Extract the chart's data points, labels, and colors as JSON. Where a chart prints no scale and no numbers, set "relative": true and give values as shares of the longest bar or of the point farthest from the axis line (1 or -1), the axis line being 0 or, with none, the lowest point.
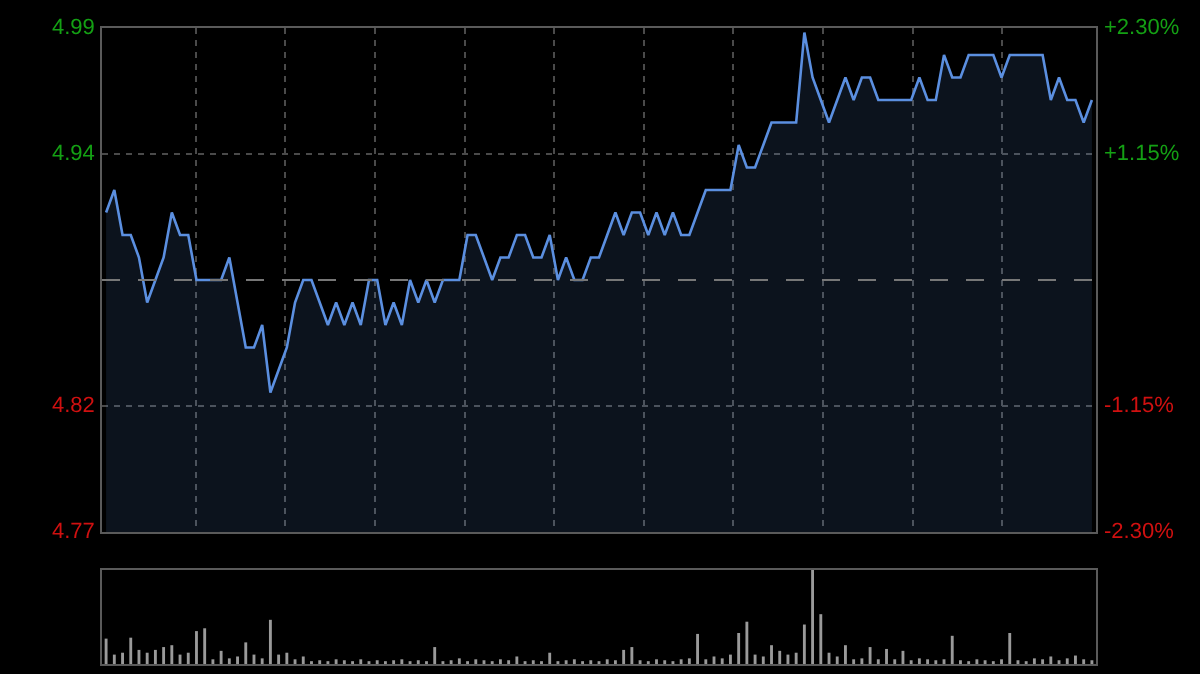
{
  "chart_data": [
    {
      "type": "area",
      "categories": [
        null,
        null,
        null,
        null,
        null,
        null,
        null,
        null,
        null,
        null,
        null,
        null,
        null,
        null,
        null,
        null,
        null,
        null,
        null,
        null,
        null,
        null,
        null,
        null,
        null,
        null,
        null,
        null,
        null,
        null,
        null,
        null,
        null,
        null,
        null,
        null,
        null,
        null,
        null,
        null,
        null,
        null,
        null,
        null,
        null,
        null,
        null,
        null,
        null,
        null,
        null,
        null,
        null,
        null,
        null,
        null,
        null,
        null,
        null,
        null,
        null,
        null,
        null,
        null,
        null,
        null,
        null,
        null,
        null,
        null,
        null,
        null,
        null,
        null,
        null,
        null,
        null,
        null,
        null,
        null,
        null,
        null,
        null,
        null,
        null,
        null,
        null,
        null,
        null,
        null,
        null,
        null,
        null,
        null,
        null,
        null,
        null,
        null,
        null,
        null,
        null,
        null,
        null,
        null,
        null,
        null,
        null,
        null,
        null,
        null,
        null,
        null,
        null,
        null,
        null,
        null,
        null,
        null,
        null,
        null,
        null
      ],
      "series": [
        {
          "color": "#5b8fe0",
          "values": [
            4.91,
            4.92,
            4.9,
            4.9,
            4.89,
            4.87,
            4.88,
            4.89,
            4.91,
            4.9,
            4.9,
            4.88,
            4.88,
            4.88,
            4.88,
            4.89,
            4.87,
            4.85,
            4.85,
            4.86,
            4.83,
            4.84,
            4.85,
            4.87,
            4.88,
            4.88,
            4.87,
            4.86,
            4.87,
            4.86,
            4.87,
            4.86,
            4.88,
            4.88,
            4.86,
            4.87,
            4.86,
            4.88,
            4.87,
            4.88,
            4.87,
            4.88,
            4.88,
            4.88,
            4.9,
            4.9,
            4.89,
            4.88,
            4.89,
            4.89,
            4.9,
            4.9,
            4.89,
            4.89,
            4.9,
            4.88,
            4.89,
            4.88,
            4.88,
            4.89,
            4.89,
            4.9,
            4.91,
            4.9,
            4.91,
            4.91,
            4.9,
            4.91,
            4.9,
            4.91,
            4.9,
            4.9,
            4.91,
            4.92,
            4.92,
            4.92,
            4.92,
            4.94,
            4.93,
            4.93,
            4.94,
            4.95,
            4.95,
            4.95,
            4.95,
            4.99,
            4.97,
            4.96,
            4.95,
            4.96,
            4.97,
            4.96,
            4.97,
            4.97,
            4.96,
            4.96,
            4.96,
            4.96,
            4.96,
            4.97,
            4.96,
            4.96,
            4.98,
            4.97,
            4.97,
            4.98,
            4.98,
            4.98,
            4.98,
            4.97,
            4.98,
            4.98,
            4.98,
            4.98,
            4.98,
            4.96,
            4.97,
            4.96,
            4.96,
            4.95,
            4.96
          ]
        }
      ],
      "ylim": [
        4.768,
        4.992
      ],
      "yticks": [
        {
          "value": 4.992,
          "label": "4.99"
        },
        {
          "value": 4.936,
          "label": "4.94"
        },
        {
          "value": 4.824,
          "label": "4.82"
        },
        {
          "value": 4.768,
          "label": "4.77"
        }
      ],
      "y2lim": [
        -2.3,
        2.3
      ],
      "y2ticks": [
        {
          "value": 2.3,
          "label": "+2.30%"
        },
        {
          "value": 1.15,
          "label": "+1.15%"
        },
        {
          "value": -1.15,
          "label": "-1.15%"
        },
        {
          "value": -2.3,
          "label": "-2.30%"
        }
      ],
      "ref_lines": [
        {
          "axis": "y",
          "value": 4.88,
          "label": null,
          "line_style": "dashed"
        }
      ],
      "grid": true,
      "tick_labels": "y"
    },
    {
      "type": "bar",
      "relative": true,
      "color": "#9a9a9a",
      "tick_labels": false,
      "categories": [
        null,
        null,
        null,
        null,
        null,
        null,
        null,
        null,
        null,
        null,
        null,
        null,
        null,
        null,
        null,
        null,
        null,
        null,
        null,
        null,
        null,
        null,
        null,
        null,
        null,
        null,
        null,
        null,
        null,
        null,
        null,
        null,
        null,
        null,
        null,
        null,
        null,
        null,
        null,
        null,
        null,
        null,
        null,
        null,
        null,
        null,
        null,
        null,
        null,
        null,
        null,
        null,
        null,
        null,
        null,
        null,
        null,
        null,
        null,
        null,
        null,
        null,
        null,
        null,
        null,
        null,
        null,
        null,
        null,
        null,
        null,
        null,
        null,
        null,
        null,
        null,
        null,
        null,
        null,
        null,
        null,
        null,
        null,
        null,
        null,
        null,
        null,
        null,
        null,
        null,
        null,
        null,
        null,
        null,
        null,
        null,
        null,
        null,
        null,
        null,
        null,
        null,
        null,
        null,
        null,
        null,
        null,
        null,
        null,
        null,
        null,
        null,
        null,
        null,
        null,
        null,
        null,
        null,
        null,
        null,
        null
      ],
      "values": [
        0.27,
        0.1,
        0.12,
        0.28,
        0.15,
        0.12,
        0.15,
        0.18,
        0.2,
        0.1,
        0.12,
        0.35,
        0.38,
        0.05,
        0.14,
        0.06,
        0.08,
        0.23,
        0.1,
        0.06,
        0.47,
        0.1,
        0.12,
        0.05,
        0.08,
        0.03,
        0.04,
        0.03,
        0.05,
        0.04,
        0.03,
        0.05,
        0.03,
        0.04,
        0.03,
        0.04,
        0.05,
        0.03,
        0.04,
        0.03,
        0.18,
        0.03,
        0.04,
        0.06,
        0.03,
        0.05,
        0.04,
        0.03,
        0.05,
        0.04,
        0.08,
        0.03,
        0.04,
        0.03,
        0.12,
        0.03,
        0.04,
        0.05,
        0.03,
        0.04,
        0.03,
        0.05,
        0.04,
        0.15,
        0.18,
        0.04,
        0.03,
        0.05,
        0.04,
        0.03,
        0.05,
        0.06,
        0.32,
        0.05,
        0.08,
        0.06,
        0.1,
        0.33,
        0.45,
        0.1,
        0.08,
        0.2,
        0.14,
        0.1,
        0.12,
        0.42,
        1,
        0.53,
        0.12,
        0.08,
        0.2,
        0.05,
        0.06,
        0.18,
        0.05,
        0.16,
        0.05,
        0.14,
        0.04,
        0.06,
        0.05,
        0.04,
        0.05,
        0.3,
        0.04,
        0.03,
        0.05,
        0.04,
        0.03,
        0.05,
        0.33,
        0.04,
        0.03,
        0.06,
        0.05,
        0.08,
        0.04,
        0.06,
        0.09,
        0.05,
        0.04
      ]
    }
  ]
}
